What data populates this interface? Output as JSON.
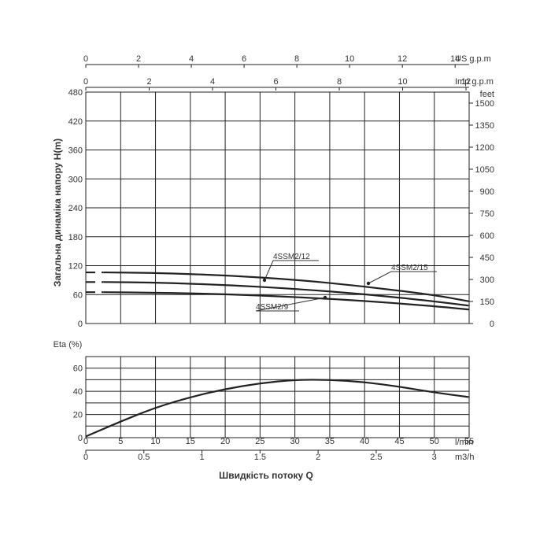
{
  "chart_data": [
    {
      "type": "line",
      "ylabel": "Загальна динаміка напору H(m)",
      "ylim": [
        0,
        480
      ],
      "yticks": [
        0,
        60,
        120,
        180,
        240,
        300,
        360,
        420,
        480
      ],
      "xlim": [
        0,
        55
      ],
      "grid": true,
      "top_axes": [
        {
          "unit": "US g.p.m",
          "ticks": [
            0,
            2,
            4,
            6,
            8,
            10,
            12,
            14
          ],
          "lpm_per_unit": 3.785
        },
        {
          "unit": "Imp g.p.m",
          "ticks": [
            0,
            2,
            4,
            6,
            8,
            10,
            12
          ],
          "lpm_per_unit": 4.546
        }
      ],
      "right_axis": {
        "unit": "feet",
        "ticks": [
          0,
          150,
          300,
          450,
          600,
          750,
          900,
          1050,
          1200,
          1350,
          1500
        ],
        "meters_per_unit": 0.3048
      },
      "series": [
        {
          "name": "4SSM2/15",
          "x": [
            2.5,
            10,
            20,
            30,
            40,
            50,
            55
          ],
          "y": [
            106,
            105,
            100,
            91,
            77,
            59,
            46
          ],
          "extrapolated_y": 106
        },
        {
          "name": "4SSM2/12",
          "x": [
            2.5,
            10,
            20,
            30,
            40,
            50,
            55
          ],
          "y": [
            86,
            85,
            80,
            72,
            61,
            46,
            37
          ],
          "extrapolated_y": 86
        },
        {
          "name": "4SSM2/9",
          "x": [
            2.5,
            10,
            20,
            30,
            40,
            50,
            55
          ],
          "y": [
            65,
            64,
            61,
            55,
            47,
            36,
            29
          ],
          "extrapolated_y": 65
        }
      ]
    },
    {
      "type": "line",
      "ylabel": "Eta (%)",
      "ylim": [
        0,
        70
      ],
      "yticks": [
        0,
        20,
        40,
        60
      ],
      "xlim": [
        0,
        55
      ],
      "grid": true,
      "series": [
        {
          "name": "",
          "x": [
            0,
            5,
            10,
            15,
            20,
            25,
            30,
            35,
            40,
            45,
            50,
            55
          ],
          "y": [
            1,
            14,
            26,
            35,
            42,
            47,
            50,
            50,
            48,
            44,
            39,
            35
          ]
        }
      ]
    }
  ],
  "x_axes": {
    "lmin": {
      "unit": "l/min",
      "ticks": [
        0,
        5,
        10,
        15,
        20,
        25,
        30,
        35,
        40,
        45,
        50,
        55
      ]
    },
    "m3h": {
      "unit": "m3/h",
      "ticks": [
        "0",
        "0.5",
        "1",
        "1.5",
        "2",
        "2.5",
        "3"
      ],
      "values": [
        0,
        0.5,
        1,
        1.5,
        2,
        2.5,
        3
      ]
    },
    "title": "Швидкість потоку Q"
  }
}
